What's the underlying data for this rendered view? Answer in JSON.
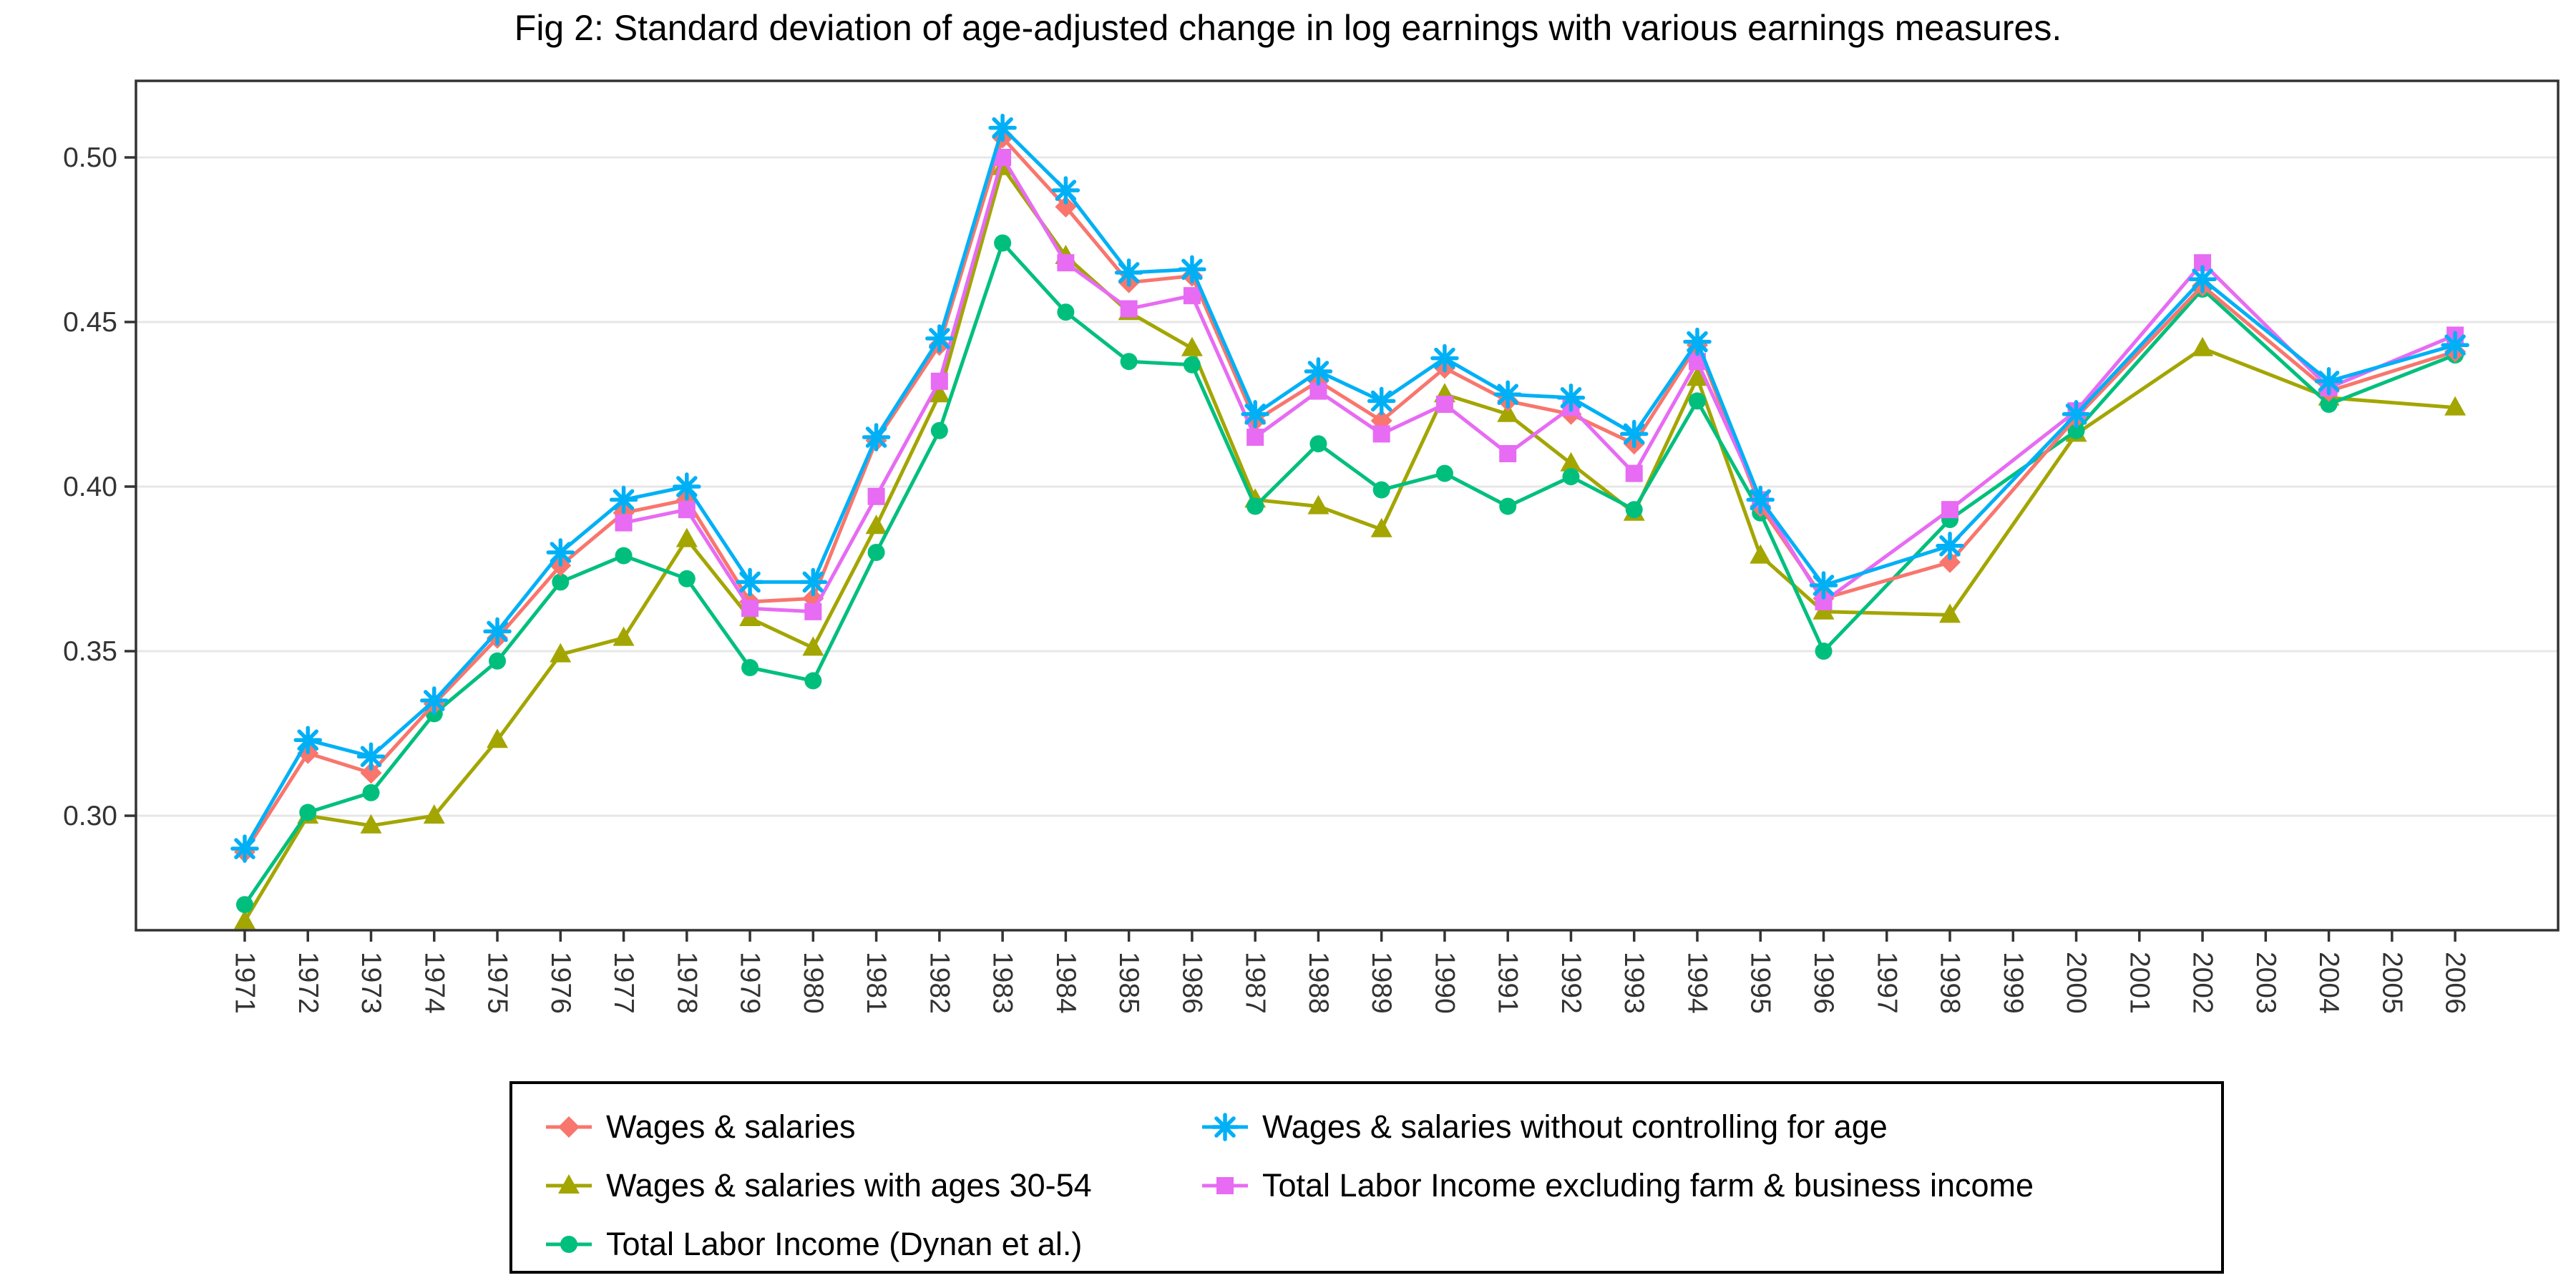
{
  "chart_data": {
    "type": "line",
    "title": "Fig 2: Standard deviation of age-adjusted change in log earnings with various earnings measures.",
    "xlabel": "",
    "ylabel": "",
    "grid": "horizontal, light gray, white panel, dark panel border",
    "legend_position": "bottom, boxed, 2 columns",
    "ylim": [
      0.265,
      0.523
    ],
    "ytick_labels": [
      "0.30",
      "0.35",
      "0.40",
      "0.45",
      "0.50"
    ],
    "yticks": [
      0.3,
      0.35,
      0.4,
      0.45,
      0.5
    ],
    "categories": [
      "1971",
      "1972",
      "1973",
      "1974",
      "1975",
      "1976",
      "1977",
      "1978",
      "1979",
      "1980",
      "1981",
      "1982",
      "1983",
      "1984",
      "1985",
      "1986",
      "1987",
      "1988",
      "1989",
      "1990",
      "1991",
      "1992",
      "1993",
      "1994",
      "1995",
      "1996",
      "1997",
      "1998",
      "1999",
      "2000",
      "2001",
      "2002",
      "2003",
      "2004",
      "2005",
      "2006"
    ],
    "note_missing_years": [
      1997,
      1999,
      2001,
      2003,
      2005
    ],
    "series": [
      {
        "name": "Wages & salaries",
        "color": "#F8766D",
        "marker": "diamond",
        "values": [
          0.289,
          0.319,
          0.313,
          0.334,
          0.354,
          0.376,
          0.392,
          0.396,
          0.365,
          0.366,
          0.414,
          0.443,
          0.506,
          0.485,
          0.462,
          0.464,
          0.42,
          0.432,
          0.42,
          0.436,
          0.426,
          0.422,
          0.413,
          0.443,
          0.394,
          0.366,
          null,
          0.377,
          null,
          0.421,
          null,
          0.461,
          null,
          0.429,
          null,
          0.441
        ]
      },
      {
        "name": "Wages & salaries with ages 30-54",
        "color": "#A3A500",
        "marker": "triangle",
        "values": [
          0.268,
          0.3,
          0.297,
          0.3,
          0.323,
          0.349,
          0.354,
          0.384,
          0.36,
          0.351,
          0.388,
          0.428,
          0.497,
          0.47,
          0.453,
          0.442,
          0.396,
          0.394,
          0.387,
          0.428,
          0.422,
          0.407,
          0.392,
          0.433,
          0.379,
          0.362,
          null,
          0.361,
          null,
          0.416,
          null,
          0.442,
          null,
          0.427,
          null,
          0.424
        ]
      },
      {
        "name": "Total Labor Income (Dynan et al.)",
        "color": "#00BF7D",
        "marker": "circle",
        "values": [
          0.273,
          0.301,
          0.307,
          0.331,
          0.347,
          0.371,
          0.379,
          0.372,
          0.345,
          0.341,
          0.38,
          0.417,
          0.474,
          0.453,
          0.438,
          0.437,
          0.394,
          0.413,
          0.399,
          0.404,
          0.394,
          0.403,
          0.393,
          0.426,
          0.392,
          0.35,
          null,
          0.39,
          null,
          0.417,
          null,
          0.46,
          null,
          0.425,
          null,
          0.44
        ]
      },
      {
        "name": "Wages & salaries without controlling for age",
        "color": "#00B0F6",
        "marker": "asterisk",
        "values": [
          0.29,
          0.323,
          0.318,
          0.335,
          0.356,
          0.38,
          0.396,
          0.4,
          0.371,
          0.371,
          0.415,
          0.445,
          0.509,
          0.49,
          0.465,
          0.466,
          0.422,
          0.435,
          0.426,
          0.439,
          0.428,
          0.427,
          0.416,
          0.444,
          0.396,
          0.37,
          null,
          0.382,
          null,
          0.422,
          null,
          0.463,
          null,
          0.432,
          null,
          0.443
        ]
      },
      {
        "name": "Total Labor Income excluding farm & business income",
        "color": "#E76BF3",
        "marker": "square",
        "values": [
          null,
          null,
          null,
          null,
          null,
          null,
          0.389,
          0.393,
          0.363,
          0.362,
          0.397,
          0.432,
          0.5,
          0.468,
          0.454,
          0.458,
          0.415,
          0.429,
          0.416,
          0.425,
          0.41,
          0.424,
          0.404,
          0.438,
          0.396,
          0.365,
          null,
          0.393,
          null,
          0.423,
          null,
          0.468,
          null,
          0.43,
          null,
          0.446
        ]
      }
    ],
    "legend_columns": [
      [
        0,
        1,
        2
      ],
      [
        3,
        4
      ]
    ]
  }
}
